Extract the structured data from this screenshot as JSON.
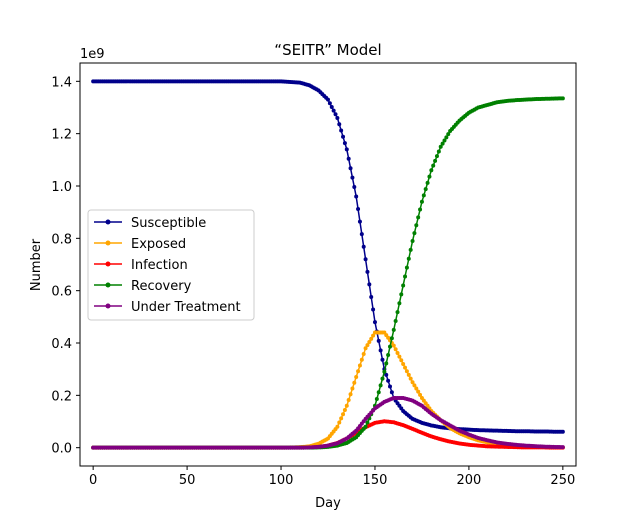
{
  "chart_data": {
    "type": "line",
    "title": "“SEITR” Model",
    "xlabel": "Day",
    "ylabel": "Number",
    "offset_label": "1e9",
    "xlim": [
      -7,
      257
    ],
    "ylim": [
      -0.07,
      1.47
    ],
    "xticks": [
      0,
      50,
      100,
      150,
      200,
      250
    ],
    "yticks": [
      0.0,
      0.2,
      0.4,
      0.6,
      0.8,
      1.0,
      1.2,
      1.4
    ],
    "ytick_labels": [
      "0.0",
      "0.2",
      "0.4",
      "0.6",
      "0.8",
      "1.0",
      "1.2",
      "1.4"
    ],
    "legend_position": "center-left",
    "x": [
      0,
      100,
      110,
      115,
      120,
      125,
      130,
      135,
      140,
      145,
      150,
      155,
      160,
      165,
      170,
      175,
      180,
      185,
      190,
      195,
      200,
      205,
      210,
      215,
      220,
      225,
      230,
      235,
      240,
      245,
      250
    ],
    "series": [
      {
        "name": "Susceptible",
        "color": "#00008b",
        "values": [
          1.4,
          1.4,
          1.395,
          1.385,
          1.365,
          1.33,
          1.26,
          1.14,
          0.96,
          0.72,
          0.48,
          0.3,
          0.19,
          0.14,
          0.11,
          0.095,
          0.085,
          0.078,
          0.074,
          0.071,
          0.069,
          0.067,
          0.066,
          0.065,
          0.064,
          0.063,
          0.063,
          0.062,
          0.062,
          0.061,
          0.061
        ]
      },
      {
        "name": "Exposed",
        "color": "#ffa500",
        "values": [
          0.0,
          0.0,
          0.002,
          0.005,
          0.015,
          0.035,
          0.08,
          0.16,
          0.27,
          0.38,
          0.44,
          0.44,
          0.39,
          0.32,
          0.25,
          0.19,
          0.14,
          0.105,
          0.075,
          0.055,
          0.04,
          0.028,
          0.02,
          0.014,
          0.01,
          0.007,
          0.005,
          0.003,
          0.002,
          0.001,
          0.001
        ]
      },
      {
        "name": "Infection",
        "color": "#ff0000",
        "values": [
          0.0,
          0.0,
          0.0,
          0.001,
          0.003,
          0.008,
          0.018,
          0.035,
          0.057,
          0.078,
          0.095,
          0.101,
          0.097,
          0.086,
          0.072,
          0.057,
          0.043,
          0.032,
          0.023,
          0.016,
          0.011,
          0.008,
          0.005,
          0.004,
          0.003,
          0.002,
          0.001,
          0.001,
          0.001,
          0.0,
          0.0
        ]
      },
      {
        "name": "Recovery",
        "color": "#008000",
        "values": [
          0.0,
          0.0,
          0.0,
          0.0,
          0.001,
          0.003,
          0.008,
          0.018,
          0.04,
          0.08,
          0.16,
          0.29,
          0.45,
          0.62,
          0.79,
          0.94,
          1.06,
          1.15,
          1.21,
          1.25,
          1.28,
          1.3,
          1.31,
          1.32,
          1.325,
          1.328,
          1.33,
          1.332,
          1.333,
          1.334,
          1.335
        ]
      },
      {
        "name": "Under Treatment",
        "color": "#800080",
        "values": [
          0.0,
          0.0,
          0.0,
          0.001,
          0.003,
          0.008,
          0.017,
          0.035,
          0.065,
          0.11,
          0.15,
          0.175,
          0.19,
          0.19,
          0.18,
          0.16,
          0.13,
          0.105,
          0.085,
          0.065,
          0.05,
          0.037,
          0.028,
          0.02,
          0.015,
          0.011,
          0.008,
          0.006,
          0.004,
          0.003,
          0.002
        ]
      }
    ]
  }
}
